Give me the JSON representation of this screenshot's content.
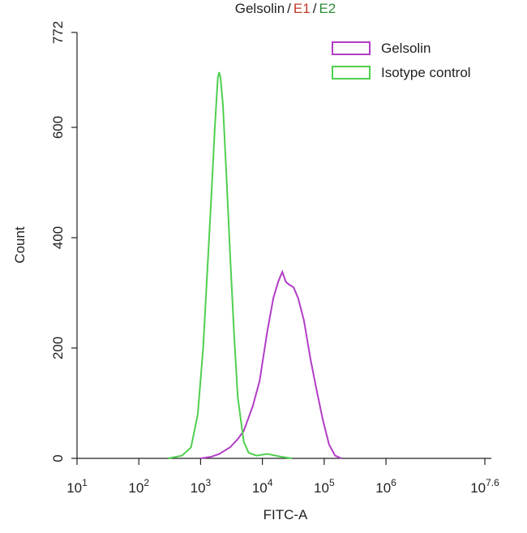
{
  "chart_data": {
    "type": "line",
    "title": [
      {
        "text": "Gelsolin",
        "color": "#222222"
      },
      {
        "text": "/",
        "color": "#222222"
      },
      {
        "text": "E1",
        "color": "#c0392b"
      },
      {
        "text": "/",
        "color": "#222222"
      },
      {
        "text": "E2",
        "color": "#2e8b3a"
      }
    ],
    "x_label": "FITC-A",
    "y_label": "Count",
    "x_log": true,
    "xlim": [
      10,
      39810717
    ],
    "ylim": [
      0,
      772
    ],
    "xticks": [
      {
        "value": 10,
        "label": [
          "10",
          "1"
        ]
      },
      {
        "value": 100,
        "label": [
          "10",
          "2"
        ]
      },
      {
        "value": 1000,
        "label": [
          "10",
          "3"
        ]
      },
      {
        "value": 10000,
        "label": [
          "10",
          "4"
        ]
      },
      {
        "value": 100000,
        "label": [
          "10",
          "5"
        ]
      },
      {
        "value": 1000000,
        "label": [
          "10",
          "6"
        ]
      },
      {
        "value": 39810717,
        "label": [
          "10",
          "7.6"
        ]
      }
    ],
    "yticks": [
      0,
      200,
      400,
      600,
      772
    ],
    "legend": "upper right",
    "series": [
      {
        "name": "Gelsolin",
        "color": "#b23dc6",
        "x": [
          1000,
          1500,
          2000,
          3000,
          4000,
          5000,
          7000,
          9000,
          12000,
          15000,
          18000,
          21000,
          24000,
          27000,
          32000,
          38000,
          47000,
          60000,
          75000,
          95000,
          120000,
          150000,
          190000
        ],
        "values": [
          0,
          3,
          8,
          20,
          35,
          50,
          95,
          140,
          230,
          290,
          320,
          338,
          320,
          315,
          310,
          290,
          250,
          180,
          125,
          70,
          25,
          5,
          0
        ]
      },
      {
        "name": "Isotype control",
        "color": "#4fcf4f",
        "x": [
          300,
          500,
          700,
          900,
          1100,
          1300,
          1500,
          1700,
          1900,
          2000,
          2100,
          2300,
          2600,
          3000,
          3500,
          4000,
          5000,
          6000,
          8000,
          12000,
          20000,
          30000
        ],
        "values": [
          0,
          5,
          20,
          80,
          200,
          350,
          480,
          600,
          690,
          700,
          690,
          640,
          520,
          370,
          220,
          110,
          30,
          10,
          5,
          8,
          3,
          0
        ]
      }
    ]
  }
}
